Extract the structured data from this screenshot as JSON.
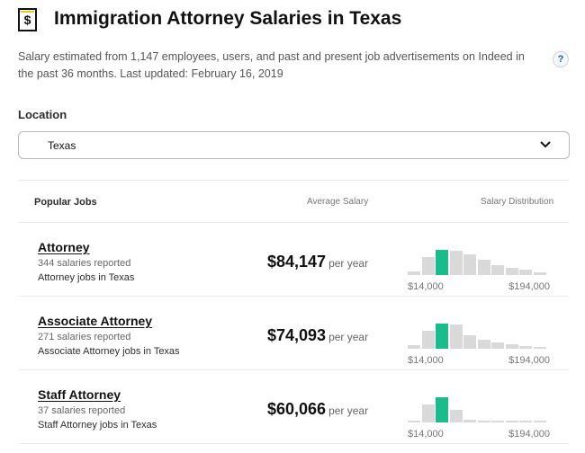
{
  "header": {
    "title": "Immigration Attorney Salaries in Texas",
    "icon": "salary-document-icon"
  },
  "description": "Salary estimated from 1,147 employees, users, and past and present job advertisements on Indeed in the past 36 months. Last updated: February 16, 2019",
  "help_label": "?",
  "location": {
    "label": "Location",
    "value": "Texas"
  },
  "table": {
    "headers": {
      "jobs": "Popular Jobs",
      "avg": "Average Salary",
      "dist": "Salary Distribution"
    },
    "rows": [
      {
        "title": "Attorney",
        "count": "344 salaries reported",
        "link": "Attorney jobs in Texas",
        "salary": "$84,147",
        "period": "per year",
        "range_min": "$14,000",
        "range_max": "$194,000",
        "distribution": [
          0.15,
          0.72,
          1.0,
          0.95,
          0.82,
          0.6,
          0.4,
          0.3,
          0.2,
          0.12
        ],
        "highlight_index": 2
      },
      {
        "title": "Associate Attorney",
        "count": "271 salaries reported",
        "link": "Associate Attorney jobs in Texas",
        "salary": "$74,093",
        "period": "per year",
        "range_min": "$14,000",
        "range_max": "$194,000",
        "distribution": [
          0.15,
          0.72,
          1.0,
          0.95,
          0.52,
          0.35,
          0.25,
          0.18,
          0.12,
          0.08
        ],
        "highlight_index": 2
      },
      {
        "title": "Staff Attorney",
        "count": "37 salaries reported",
        "link": "Staff Attorney jobs in Texas",
        "salary": "$60,066",
        "period": "per year",
        "range_min": "$14,000",
        "range_max": "$194,000",
        "distribution": [
          0.06,
          0.7,
          1.0,
          0.5,
          0.1,
          0.08,
          0.05,
          0.04,
          0.03,
          0.02
        ],
        "highlight_index": 2
      }
    ]
  },
  "colors": {
    "accent": "#1bbc8b",
    "bar": "#d9d9d9",
    "help": "#2557a7"
  }
}
